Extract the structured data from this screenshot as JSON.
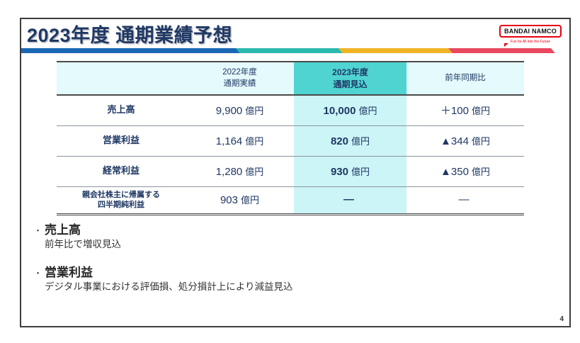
{
  "slide": {
    "title": "2023年度 通期業績予想",
    "page_number": "4",
    "bullet_char": "・"
  },
  "logo": {
    "wordmark": "BANDAI NAMCO",
    "tagline": "Fun for All into the Future",
    "brand_color": "#e60012"
  },
  "colors": {
    "navy_text": "#1f3864",
    "accent_blue": "#1b67b5",
    "accent_teal": "#2cb9ae",
    "accent_yellow": "#f0b428",
    "accent_red": "#e8495f",
    "header_bg": "#e4fafc",
    "highlight_header_bg": "#4fd4d2",
    "highlight_body_bg": "#ccf5f7"
  },
  "table": {
    "col_headers": {
      "label": "",
      "fy2022": "2022年度\n通期実績",
      "fy2023": "2023年度\n通期見込",
      "yoy": "前年同期比"
    },
    "rows": [
      {
        "label": "売上高",
        "fy2022": "9,900",
        "fy2022_unit": "億円",
        "fy2023": "10,000",
        "fy2023_unit": "億円",
        "yoy": "＋100",
        "yoy_unit": "億円"
      },
      {
        "label": "営業利益",
        "fy2022": "1,164",
        "fy2022_unit": "億円",
        "fy2023": "820",
        "fy2023_unit": "億円",
        "yoy": "▲344",
        "yoy_unit": "億円"
      },
      {
        "label": "経常利益",
        "fy2022": "1,280",
        "fy2022_unit": "億円",
        "fy2023": "930",
        "fy2023_unit": "億円",
        "yoy": "▲350",
        "yoy_unit": "億円"
      },
      {
        "label": "親会社株主に帰属する\n四半期純利益",
        "fy2022": "903",
        "fy2022_unit": "億円",
        "fy2023": "―",
        "fy2023_unit": "",
        "yoy": "―",
        "yoy_unit": ""
      }
    ]
  },
  "notes": [
    {
      "heading": "売上高",
      "detail": "前年比で増収見込"
    },
    {
      "heading": "営業利益",
      "detail": "デジタル事業における評価損、処分損計上により減益見込"
    }
  ]
}
